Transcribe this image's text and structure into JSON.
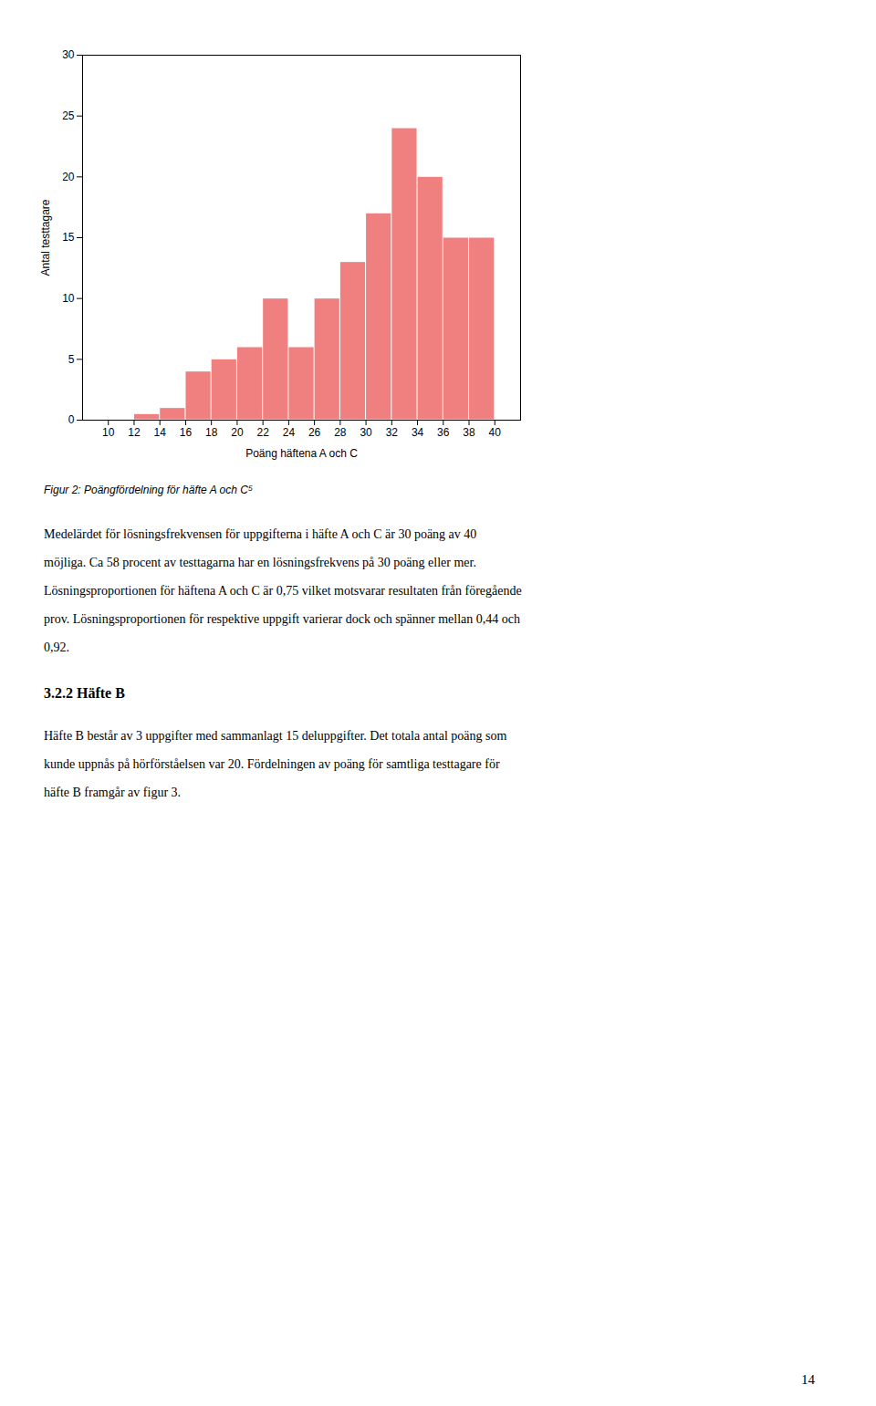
{
  "chart_data": {
    "type": "histogram",
    "bins": [
      10,
      12,
      14,
      16,
      18,
      20,
      22,
      24,
      26,
      28,
      30,
      32,
      34,
      36,
      38,
      40
    ],
    "values": [
      0,
      0.5,
      1,
      4,
      5,
      6,
      10,
      6,
      10,
      13,
      17,
      24,
      20,
      15,
      15
    ],
    "color": "#F08080",
    "xlim": [
      8,
      42
    ],
    "xticks": [
      10,
      12,
      14,
      16,
      18,
      20,
      22,
      24,
      26,
      28,
      30,
      32,
      34,
      36,
      38,
      40
    ],
    "ylim": [
      0,
      30
    ],
    "yticks": [
      0,
      5,
      10,
      15,
      20,
      25,
      30
    ],
    "xlabel": "Poäng häftena A och C",
    "ylabel": "Antal testtagare",
    "caption": "Figur 2: Poängfördelning för häfte A och C⁵",
    "grid": false
  },
  "page_text": [
    {
      "style": "paragraph",
      "lines": [
        "Medelärdet för lösningsfrekvensen för uppgifterna i häfte A och C är 30 poäng av 40",
        "möjliga. Ca 58 procent av testtagarna har en lösningsfrekvens på 30 poäng eller mer.",
        "Lösningsproportionen för häftena A och C är 0,75 vilket motsvarar resultaten från föregående",
        "prov. Lösningsproportionen för respektive uppgift varierar dock och spänner mellan 0,44 och",
        "0,92."
      ]
    },
    {
      "style": "heading",
      "text": "3.2.2 Häfte B"
    },
    {
      "style": "paragraph",
      "lines": [
        "Häfte B består av 3 uppgifter med sammanlagt 15 deluppgifter. Det totala antal poäng som",
        "kunde uppnås på hörförståelsen var 20. Fördelningen av poäng för samtliga testtagare för",
        "häfte B framgår av figur 3."
      ]
    },
    {
      "style": "page_number",
      "text": "14"
    }
  ]
}
